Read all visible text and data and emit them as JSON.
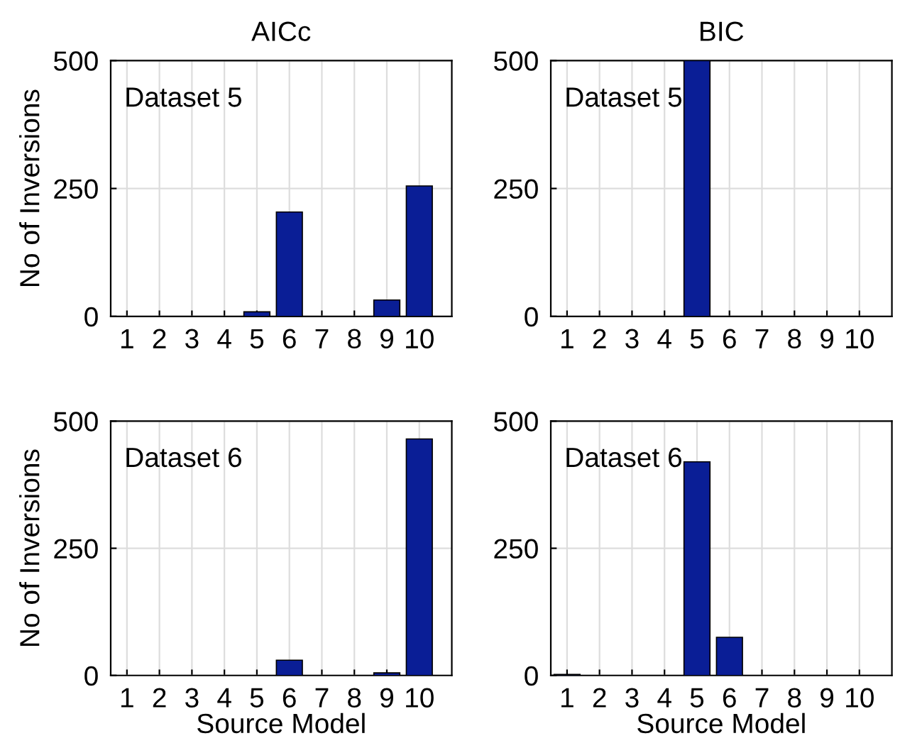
{
  "chart_data": [
    {
      "type": "bar",
      "title": "AICc",
      "ylabel": "No of Inversions",
      "categories": [
        "1",
        "2",
        "3",
        "4",
        "5",
        "6",
        "7",
        "8",
        "9",
        "10"
      ],
      "values": [
        0,
        0,
        0,
        0,
        9,
        204,
        0,
        0,
        32,
        255
      ],
      "color": "#0a1e96",
      "ylim": [
        0,
        500
      ],
      "yticks": [
        0,
        250,
        500
      ],
      "grid": true,
      "annotations": [
        "Dataset 5"
      ]
    },
    {
      "type": "bar",
      "title": "BIC",
      "categories": [
        "1",
        "2",
        "3",
        "4",
        "5",
        "6",
        "7",
        "8",
        "9",
        "10"
      ],
      "values": [
        0,
        0,
        0,
        0,
        500,
        0,
        0,
        0,
        0,
        0
      ],
      "color": "#0a1e96",
      "ylim": [
        0,
        500
      ],
      "yticks": [
        0,
        250,
        500
      ],
      "grid": true,
      "annotations": [
        "Dataset 5"
      ]
    },
    {
      "type": "bar",
      "ylabel": "No of Inversions",
      "xlabel": "Source Model",
      "categories": [
        "1",
        "2",
        "3",
        "4",
        "5",
        "6",
        "7",
        "8",
        "9",
        "10"
      ],
      "values": [
        0,
        0,
        0,
        0,
        0,
        30,
        0,
        0,
        5,
        465
      ],
      "color": "#0a1e96",
      "ylim": [
        0,
        500
      ],
      "yticks": [
        0,
        250,
        500
      ],
      "grid": true,
      "annotations": [
        "Dataset 6"
      ]
    },
    {
      "type": "bar",
      "xlabel": "Source Model",
      "categories": [
        "1",
        "2",
        "3",
        "4",
        "5",
        "6",
        "7",
        "8",
        "9",
        "10"
      ],
      "values": [
        2,
        0,
        0,
        0,
        420,
        75,
        0,
        0,
        0,
        0
      ],
      "color": "#0a1e96",
      "ylim": [
        0,
        500
      ],
      "yticks": [
        0,
        250,
        500
      ],
      "grid": true,
      "annotations": [
        "Dataset 6"
      ]
    }
  ]
}
